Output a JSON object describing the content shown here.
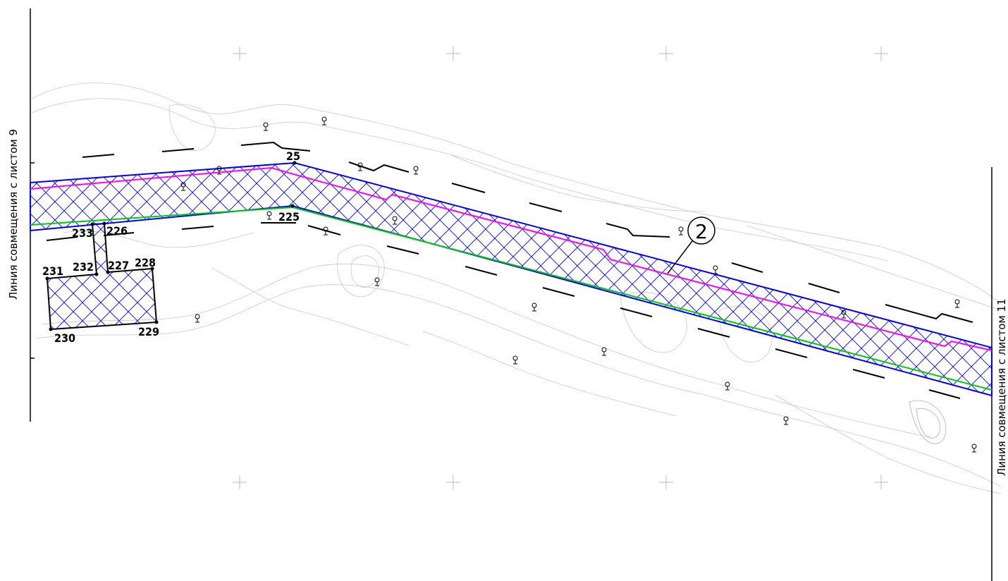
{
  "sheet_links": {
    "left": "Линия совмещения с листом 9",
    "right": "Линия совмещения с листом 11"
  },
  "callout": "2",
  "points": [
    "25",
    "225",
    "226",
    "227",
    "228",
    "229",
    "230",
    "231",
    "232",
    "233"
  ],
  "colors": {
    "boundary": "#0000ff",
    "hatch": "#0000ff",
    "axis_line": "#ff00ff",
    "green_line": "#00cc00",
    "outline": "#000000",
    "topography": "#c8c8c8"
  },
  "icons": [
    "tree-icon",
    "grid-cross-icon"
  ]
}
